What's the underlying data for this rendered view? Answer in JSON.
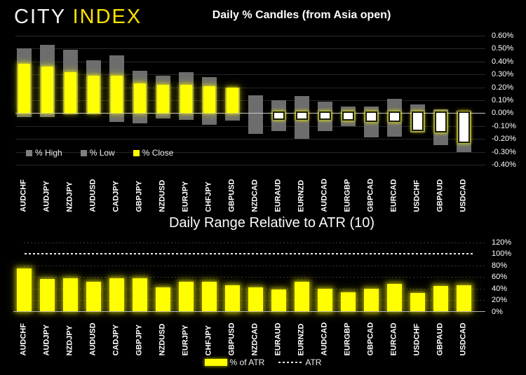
{
  "logo": {
    "city": "CITY ",
    "index": "INDEX"
  },
  "colors": {
    "background": "#000000",
    "bar_yellow": "#ffff00",
    "range_gray": "#6d6d6d",
    "legend_gray": "#7f7f7f",
    "negative_close_fill": "#ffffff",
    "zero_line": "#c9c9c9",
    "logo_yellow": "#ffe100"
  },
  "chart_data": [
    {
      "type": "bar",
      "title": "Daily % Candles (from Asia open)",
      "categories": [
        "AUDCHF",
        "AUDJPY",
        "NZDJPY",
        "AUDUSD",
        "CADJPY",
        "GBPJPY",
        "NZDUSD",
        "EURJPY",
        "CHFJPY",
        "GBPUSD",
        "NZDCAD",
        "EURAUD",
        "EURNZD",
        "AUDCAD",
        "EURGBP",
        "GBPCAD",
        "EURCAD",
        "USDCHF",
        "GBPAUD",
        "USDCAD"
      ],
      "series": [
        {
          "name": "% High",
          "values": [
            0.5,
            0.53,
            0.49,
            0.41,
            0.45,
            0.33,
            0.29,
            0.32,
            0.28,
            0.2,
            0.14,
            0.1,
            0.13,
            0.09,
            0.05,
            0.05,
            0.11,
            0.07,
            0.03,
            0.02
          ]
        },
        {
          "name": "% Low",
          "values": [
            -0.03,
            -0.03,
            -0.01,
            -0.01,
            -0.07,
            -0.08,
            -0.04,
            -0.05,
            -0.09,
            -0.06,
            -0.16,
            -0.14,
            -0.2,
            -0.14,
            -0.1,
            -0.19,
            -0.18,
            -0.15,
            -0.25,
            -0.3
          ]
        },
        {
          "name": "% Close",
          "values": [
            0.38,
            0.36,
            0.32,
            0.29,
            0.29,
            0.23,
            0.22,
            0.22,
            0.21,
            0.2,
            0.0,
            -0.05,
            -0.05,
            -0.05,
            -0.06,
            -0.07,
            -0.07,
            -0.14,
            -0.15,
            -0.23
          ]
        }
      ],
      "xlabel": "",
      "ylabel": "",
      "ylim": [
        -0.4,
        0.6
      ],
      "grid": true,
      "legend_position": "inside-bottom-left",
      "yticks": [
        {
          "v": 0.6,
          "label": "0.60%"
        },
        {
          "v": 0.5,
          "label": "0.50%"
        },
        {
          "v": 0.4,
          "label": "0.40%"
        },
        {
          "v": 0.3,
          "label": "0.30%"
        },
        {
          "v": 0.2,
          "label": "0.20%"
        },
        {
          "v": 0.1,
          "label": "0.10%"
        },
        {
          "v": 0.0,
          "label": "0.00%"
        },
        {
          "v": -0.1,
          "label": "-0.10%"
        },
        {
          "v": -0.2,
          "label": "-0.20%"
        },
        {
          "v": -0.3,
          "label": "-0.30%"
        },
        {
          "v": -0.4,
          "label": "-0.40%"
        }
      ]
    },
    {
      "type": "bar",
      "title": "Daily Range Relative to ATR (10)",
      "categories": [
        "AUDCHF",
        "AUDJPY",
        "NZDJPY",
        "AUDUSD",
        "CADJPY",
        "GBPJPY",
        "NZDUSD",
        "EURJPY",
        "CHFJPY",
        "GBPUSD",
        "NZDCAD",
        "EURAUD",
        "EURNZD",
        "AUDCAD",
        "EURGBP",
        "GBPCAD",
        "EURCAD",
        "USDCHF",
        "GBPAUD",
        "USDCAD"
      ],
      "series": [
        {
          "name": "% of ATR",
          "values": [
            74,
            56,
            58,
            51,
            57,
            58,
            42,
            52,
            51,
            45,
            42,
            38,
            52,
            40,
            33,
            40,
            48,
            32,
            44,
            46
          ]
        }
      ],
      "reference_line": {
        "name": "ATR",
        "value": 100,
        "style": "dotted"
      },
      "xlabel": "",
      "ylabel": "",
      "ylim": [
        0,
        120
      ],
      "grid": true,
      "legend_position": "bottom-center",
      "yticks": [
        {
          "v": 120,
          "label": "120%"
        },
        {
          "v": 100,
          "label": "100%"
        },
        {
          "v": 80,
          "label": "80%"
        },
        {
          "v": 60,
          "label": "60%"
        },
        {
          "v": 40,
          "label": "40%"
        },
        {
          "v": 20,
          "label": "20%"
        },
        {
          "v": 0,
          "label": "0%"
        }
      ]
    }
  ]
}
